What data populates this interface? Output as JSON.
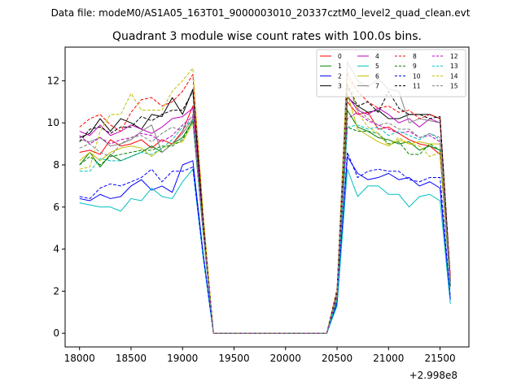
{
  "figure": {
    "suptitle": "Data file: modeM0/AS1A05_163T01_9000003010_20337cztM0_level2_quad_clean.evt"
  },
  "chart_data": {
    "type": "line",
    "title": "Quadrant 3 module wise count rates with 100.0s bins.",
    "xlabel": "",
    "ylabel": "",
    "x_offset_label": "+2.998e8",
    "xlim": [
      17860,
      21780
    ],
    "ylim": [
      -0.65,
      13.6
    ],
    "xticks": [
      18000,
      18500,
      19000,
      19500,
      20000,
      20500,
      21000,
      21500
    ],
    "yticks": [
      0,
      2,
      4,
      6,
      8,
      10,
      12
    ],
    "grid": false,
    "legend": {
      "placement": "top-right",
      "columns": 4
    },
    "x": [
      18000,
      18100,
      18200,
      18300,
      18400,
      18500,
      18600,
      18700,
      18800,
      18900,
      19000,
      19100,
      19200,
      19300,
      19400,
      19500,
      19600,
      19700,
      19800,
      19900,
      20000,
      20100,
      20200,
      20300,
      20400,
      20500,
      20600,
      20700,
      20800,
      20900,
      21000,
      21100,
      21200,
      21300,
      21400,
      21500,
      21600
    ],
    "series": [
      {
        "name": "0",
        "color": "#ff0000",
        "dash": "solid",
        "values": [
          8.6,
          8.7,
          8.5,
          9.2,
          8.9,
          9.0,
          9.2,
          8.8,
          9.2,
          9.0,
          9.6,
          10.8,
          5.0,
          0,
          0,
          0,
          0,
          0,
          0,
          0,
          0,
          0,
          0,
          0,
          0,
          1.8,
          11.0,
          10.4,
          10.5,
          9.7,
          9.8,
          9.5,
          9.2,
          9.0,
          8.9,
          8.5,
          2.4
        ]
      },
      {
        "name": "1",
        "color": "#008000",
        "dash": "solid",
        "values": [
          8.0,
          8.6,
          7.9,
          8.5,
          8.2,
          8.4,
          8.6,
          8.9,
          8.6,
          9.0,
          9.3,
          10.1,
          4.8,
          0,
          0,
          0,
          0,
          0,
          0,
          0,
          0,
          0,
          0,
          0,
          0,
          1.6,
          10.6,
          9.8,
          9.6,
          9.3,
          9.2,
          9.0,
          9.1,
          8.7,
          8.9,
          8.7,
          2.3
        ]
      },
      {
        "name": "2",
        "color": "#0000ff",
        "dash": "solid",
        "values": [
          6.4,
          6.3,
          6.6,
          6.4,
          6.5,
          7.0,
          7.3,
          6.8,
          7.0,
          6.7,
          8.0,
          8.2,
          3.8,
          0,
          0,
          0,
          0,
          0,
          0,
          0,
          0,
          0,
          0,
          0,
          0,
          1.4,
          8.4,
          7.6,
          7.3,
          7.4,
          7.6,
          7.3,
          7.4,
          7.0,
          7.2,
          6.9,
          1.6
        ]
      },
      {
        "name": "3",
        "color": "#000000",
        "dash": "solid",
        "values": [
          9.3,
          9.5,
          10.2,
          9.6,
          10.2,
          10.0,
          9.7,
          10.4,
          10.3,
          11.2,
          10.4,
          11.6,
          5.3,
          0,
          0,
          0,
          0,
          0,
          0,
          0,
          0,
          0,
          0,
          0,
          0,
          2.0,
          11.2,
          10.8,
          10.5,
          10.6,
          10.2,
          10.2,
          10.4,
          10.4,
          10.4,
          10.2,
          2.6
        ]
      },
      {
        "name": "4",
        "color": "#bf00bf",
        "dash": "solid",
        "values": [
          9.6,
          9.4,
          9.9,
          9.4,
          9.6,
          9.9,
          9.7,
          9.5,
          9.8,
          10.2,
          10.3,
          10.7,
          5.1,
          0,
          0,
          0,
          0,
          0,
          0,
          0,
          0,
          0,
          0,
          0,
          0,
          1.9,
          11.3,
          10.6,
          10.4,
          10.7,
          10.4,
          10.0,
          10.2,
          9.8,
          10.2,
          10.0,
          2.5
        ]
      },
      {
        "name": "5",
        "color": "#00bfbf",
        "dash": "solid",
        "values": [
          6.2,
          6.1,
          6.0,
          6.0,
          5.8,
          6.4,
          6.3,
          6.9,
          6.5,
          6.4,
          7.2,
          7.8,
          3.6,
          0,
          0,
          0,
          0,
          0,
          0,
          0,
          0,
          0,
          0,
          0,
          0,
          1.3,
          7.8,
          6.5,
          7.0,
          7.0,
          6.6,
          6.6,
          6.0,
          6.5,
          6.6,
          6.3,
          1.4
        ]
      },
      {
        "name": "6",
        "color": "#bfbf00",
        "dash": "solid",
        "values": [
          8.2,
          8.6,
          8.2,
          8.6,
          8.8,
          8.9,
          8.8,
          8.4,
          8.8,
          9.0,
          9.1,
          10.0,
          4.9,
          0,
          0,
          0,
          0,
          0,
          0,
          0,
          0,
          0,
          0,
          0,
          0,
          1.7,
          11.4,
          9.7,
          9.4,
          9.1,
          8.9,
          9.2,
          9.0,
          9.1,
          9.0,
          9.0,
          2.4
        ]
      },
      {
        "name": "7",
        "color": "#808080",
        "dash": "solid",
        "values": [
          9.2,
          9.1,
          9.3,
          8.9,
          9.0,
          9.2,
          9.6,
          9.9,
          8.6,
          9.0,
          9.5,
          10.2,
          5.0,
          0,
          0,
          0,
          0,
          0,
          0,
          0,
          0,
          0,
          0,
          0,
          0,
          2.0,
          12.9,
          12.0,
          11.7,
          12.1,
          11.6,
          11.5,
          10.0,
          10.2,
          10.1,
          10.0,
          2.5
        ]
      },
      {
        "name": "8",
        "color": "#ff0000",
        "dash": "dashed",
        "values": [
          9.8,
          10.2,
          10.4,
          9.9,
          9.6,
          10.5,
          11.1,
          11.2,
          10.8,
          11.0,
          11.5,
          12.3,
          5.6,
          0,
          0,
          0,
          0,
          0,
          0,
          0,
          0,
          0,
          0,
          0,
          0,
          2.1,
          12.3,
          11.5,
          11.0,
          10.7,
          10.8,
          10.5,
          10.6,
          10.2,
          10.4,
          10.2,
          2.7
        ]
      },
      {
        "name": "9",
        "color": "#008000",
        "dash": "dashed",
        "values": [
          8.0,
          8.4,
          8.0,
          8.4,
          8.5,
          8.6,
          8.7,
          8.7,
          8.9,
          8.9,
          9.2,
          10.1,
          4.8,
          0,
          0,
          0,
          0,
          0,
          0,
          0,
          0,
          0,
          0,
          0,
          0,
          1.6,
          9.8,
          9.6,
          9.6,
          9.5,
          9.0,
          9.1,
          8.5,
          8.5,
          9.0,
          8.7,
          2.2
        ]
      },
      {
        "name": "10",
        "color": "#0000ff",
        "dash": "dashed",
        "values": [
          6.5,
          6.4,
          6.9,
          7.1,
          7.0,
          7.2,
          7.4,
          7.8,
          7.2,
          7.7,
          7.7,
          7.9,
          3.7,
          0,
          0,
          0,
          0,
          0,
          0,
          0,
          0,
          0,
          0,
          0,
          0,
          1.5,
          8.6,
          7.4,
          7.7,
          7.8,
          7.7,
          7.7,
          7.3,
          7.2,
          7.4,
          7.4,
          1.7
        ]
      },
      {
        "name": "11",
        "color": "#000000",
        "dash": "dashed",
        "values": [
          9.1,
          9.7,
          9.8,
          9.5,
          9.8,
          9.8,
          10.3,
          10.1,
          10.4,
          10.6,
          10.6,
          11.5,
          5.3,
          0,
          0,
          0,
          0,
          0,
          0,
          0,
          0,
          0,
          0,
          0,
          0,
          2.0,
          11.8,
          10.8,
          11.0,
          10.5,
          11.5,
          10.7,
          10.4,
          10.4,
          10.2,
          10.3,
          2.5
        ]
      },
      {
        "name": "12",
        "color": "#bf00bf",
        "dash": "dashed",
        "values": [
          9.4,
          9.0,
          9.3,
          9.0,
          9.2,
          9.3,
          9.5,
          9.4,
          9.1,
          9.4,
          9.9,
          10.3,
          4.9,
          0,
          0,
          0,
          0,
          0,
          0,
          0,
          0,
          0,
          0,
          0,
          0,
          1.8,
          10.2,
          10.5,
          10.1,
          9.9,
          9.7,
          9.5,
          9.6,
          9.3,
          9.4,
          9.1,
          2.3
        ]
      },
      {
        "name": "13",
        "color": "#00bfbf",
        "dash": "dashed",
        "values": [
          7.7,
          7.7,
          8.3,
          8.2,
          8.2,
          8.4,
          8.6,
          8.5,
          8.8,
          9.2,
          9.8,
          10.1,
          4.8,
          0,
          0,
          0,
          0,
          0,
          0,
          0,
          0,
          0,
          0,
          0,
          0,
          1.6,
          9.8,
          9.9,
          9.7,
          9.8,
          9.4,
          9.6,
          9.4,
          9.2,
          9.5,
          9.2,
          2.3
        ]
      },
      {
        "name": "14",
        "color": "#bfbf00",
        "dash": "dashed",
        "values": [
          7.8,
          7.9,
          9.6,
          10.4,
          10.4,
          11.4,
          10.6,
          10.6,
          10.6,
          11.5,
          12.0,
          12.6,
          5.7,
          0,
          0,
          0,
          0,
          0,
          0,
          0,
          0,
          0,
          0,
          0,
          0,
          2.0,
          12.6,
          10.5,
          9.8,
          9.5,
          8.9,
          9.3,
          9.0,
          8.9,
          8.4,
          8.6,
          2.5
        ]
      },
      {
        "name": "15",
        "color": "#808080",
        "dash": "dashed",
        "values": [
          8.8,
          9.0,
          8.6,
          8.4,
          9.0,
          9.3,
          9.4,
          9.1,
          9.5,
          9.8,
          9.6,
          10.4,
          4.9,
          0,
          0,
          0,
          0,
          0,
          0,
          0,
          0,
          0,
          0,
          0,
          0,
          1.9,
          11.7,
          10.7,
          10.2,
          9.9,
          10.0,
          9.7,
          9.7,
          9.3,
          9.5,
          9.3,
          2.4
        ]
      }
    ]
  }
}
